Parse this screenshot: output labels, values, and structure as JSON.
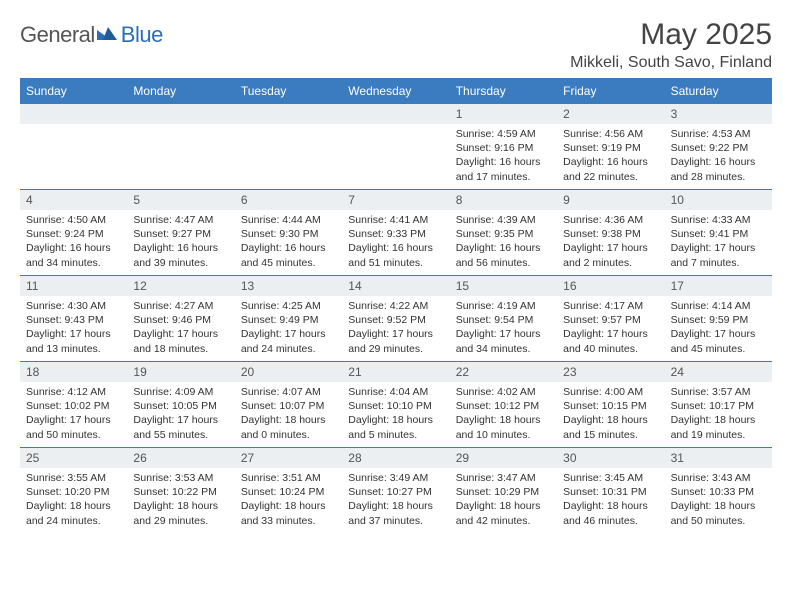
{
  "brand": {
    "part1": "General",
    "part2": "Blue"
  },
  "title": "May 2025",
  "location": "Mikkeli, South Savo, Finland",
  "colors": {
    "accent": "#3b7bbf",
    "header_bg": "#3b7bbf",
    "daynum_bg": "#eceff1",
    "text": "#333333",
    "title_text": "#444444"
  },
  "weekdays": [
    "Sunday",
    "Monday",
    "Tuesday",
    "Wednesday",
    "Thursday",
    "Friday",
    "Saturday"
  ],
  "weeks": [
    [
      null,
      null,
      null,
      null,
      {
        "n": "1",
        "sr": "4:59 AM",
        "ss": "9:16 PM",
        "dl": "16 hours and 17 minutes."
      },
      {
        "n": "2",
        "sr": "4:56 AM",
        "ss": "9:19 PM",
        "dl": "16 hours and 22 minutes."
      },
      {
        "n": "3",
        "sr": "4:53 AM",
        "ss": "9:22 PM",
        "dl": "16 hours and 28 minutes."
      }
    ],
    [
      {
        "n": "4",
        "sr": "4:50 AM",
        "ss": "9:24 PM",
        "dl": "16 hours and 34 minutes."
      },
      {
        "n": "5",
        "sr": "4:47 AM",
        "ss": "9:27 PM",
        "dl": "16 hours and 39 minutes."
      },
      {
        "n": "6",
        "sr": "4:44 AM",
        "ss": "9:30 PM",
        "dl": "16 hours and 45 minutes."
      },
      {
        "n": "7",
        "sr": "4:41 AM",
        "ss": "9:33 PM",
        "dl": "16 hours and 51 minutes."
      },
      {
        "n": "8",
        "sr": "4:39 AM",
        "ss": "9:35 PM",
        "dl": "16 hours and 56 minutes."
      },
      {
        "n": "9",
        "sr": "4:36 AM",
        "ss": "9:38 PM",
        "dl": "17 hours and 2 minutes."
      },
      {
        "n": "10",
        "sr": "4:33 AM",
        "ss": "9:41 PM",
        "dl": "17 hours and 7 minutes."
      }
    ],
    [
      {
        "n": "11",
        "sr": "4:30 AM",
        "ss": "9:43 PM",
        "dl": "17 hours and 13 minutes."
      },
      {
        "n": "12",
        "sr": "4:27 AM",
        "ss": "9:46 PM",
        "dl": "17 hours and 18 minutes."
      },
      {
        "n": "13",
        "sr": "4:25 AM",
        "ss": "9:49 PM",
        "dl": "17 hours and 24 minutes."
      },
      {
        "n": "14",
        "sr": "4:22 AM",
        "ss": "9:52 PM",
        "dl": "17 hours and 29 minutes."
      },
      {
        "n": "15",
        "sr": "4:19 AM",
        "ss": "9:54 PM",
        "dl": "17 hours and 34 minutes."
      },
      {
        "n": "16",
        "sr": "4:17 AM",
        "ss": "9:57 PM",
        "dl": "17 hours and 40 minutes."
      },
      {
        "n": "17",
        "sr": "4:14 AM",
        "ss": "9:59 PM",
        "dl": "17 hours and 45 minutes."
      }
    ],
    [
      {
        "n": "18",
        "sr": "4:12 AM",
        "ss": "10:02 PM",
        "dl": "17 hours and 50 minutes."
      },
      {
        "n": "19",
        "sr": "4:09 AM",
        "ss": "10:05 PM",
        "dl": "17 hours and 55 minutes."
      },
      {
        "n": "20",
        "sr": "4:07 AM",
        "ss": "10:07 PM",
        "dl": "18 hours and 0 minutes."
      },
      {
        "n": "21",
        "sr": "4:04 AM",
        "ss": "10:10 PM",
        "dl": "18 hours and 5 minutes."
      },
      {
        "n": "22",
        "sr": "4:02 AM",
        "ss": "10:12 PM",
        "dl": "18 hours and 10 minutes."
      },
      {
        "n": "23",
        "sr": "4:00 AM",
        "ss": "10:15 PM",
        "dl": "18 hours and 15 minutes."
      },
      {
        "n": "24",
        "sr": "3:57 AM",
        "ss": "10:17 PM",
        "dl": "18 hours and 19 minutes."
      }
    ],
    [
      {
        "n": "25",
        "sr": "3:55 AM",
        "ss": "10:20 PM",
        "dl": "18 hours and 24 minutes."
      },
      {
        "n": "26",
        "sr": "3:53 AM",
        "ss": "10:22 PM",
        "dl": "18 hours and 29 minutes."
      },
      {
        "n": "27",
        "sr": "3:51 AM",
        "ss": "10:24 PM",
        "dl": "18 hours and 33 minutes."
      },
      {
        "n": "28",
        "sr": "3:49 AM",
        "ss": "10:27 PM",
        "dl": "18 hours and 37 minutes."
      },
      {
        "n": "29",
        "sr": "3:47 AM",
        "ss": "10:29 PM",
        "dl": "18 hours and 42 minutes."
      },
      {
        "n": "30",
        "sr": "3:45 AM",
        "ss": "10:31 PM",
        "dl": "18 hours and 46 minutes."
      },
      {
        "n": "31",
        "sr": "3:43 AM",
        "ss": "10:33 PM",
        "dl": "18 hours and 50 minutes."
      }
    ]
  ],
  "labels": {
    "sunrise": "Sunrise: ",
    "sunset": "Sunset: ",
    "daylight": "Daylight: "
  }
}
